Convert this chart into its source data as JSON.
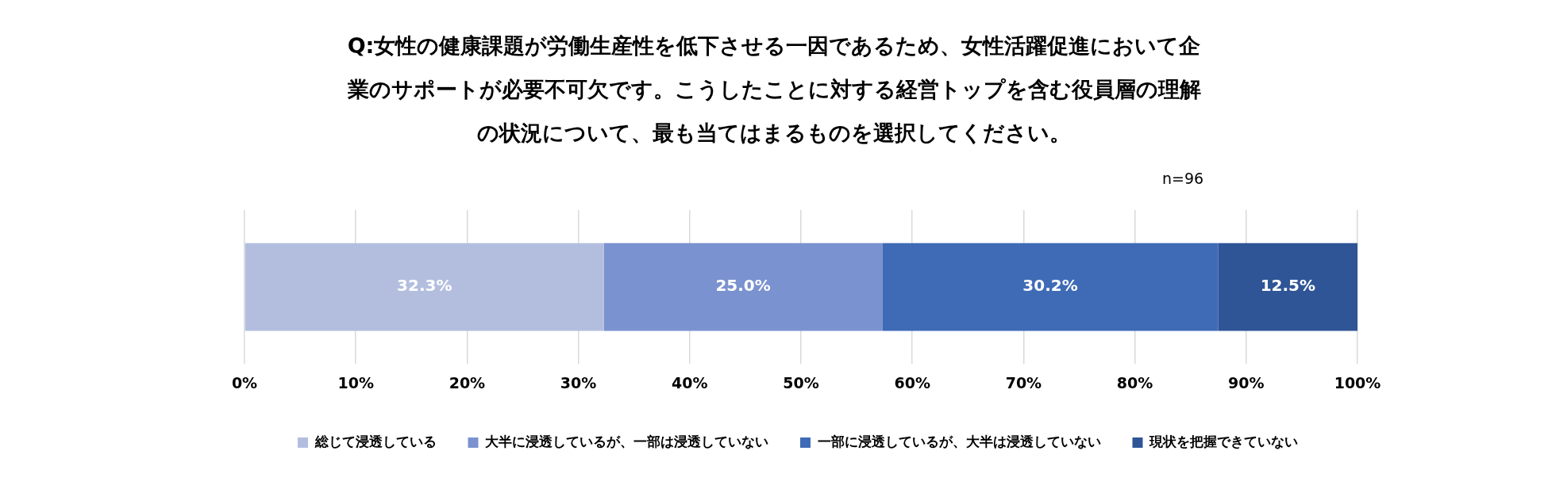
{
  "chart_data": {
    "type": "bar",
    "orientation": "horizontal",
    "stacked": true,
    "title": "Q:女性の健康課題が労働生産性を低下させる一因であるため、女性活躍促進において企業のサポートが必要不可欠です。こうしたことに対する経営トップを含む役員層の理解の状況について、最も当てはまるものを選択してください。",
    "annotations": [
      "n=96"
    ],
    "categories": [
      null
    ],
    "series": [
      {
        "name": "総じて浸透している",
        "color": "#b3bedf",
        "values": [
          32.3
        ],
        "value_labels": [
          "32.3%"
        ]
      },
      {
        "name": "大半に浸透しているが、一部は浸透していない",
        "color": "#7a92cf",
        "values": [
          25.0
        ],
        "value_labels": [
          "25.0%"
        ]
      },
      {
        "name": "一部に浸透しているが、大半は浸透していない",
        "color": "#3f6bb6",
        "values": [
          30.2
        ],
        "value_labels": [
          "30.2%"
        ]
      },
      {
        "name": "現状を把握できていない",
        "color": "#2f5597",
        "values": [
          12.5
        ],
        "value_labels": [
          "12.5%"
        ]
      }
    ],
    "xlim": [
      0,
      100
    ],
    "xticks": [
      {
        "value": 0,
        "label": "0%"
      },
      {
        "value": 10,
        "label": "10%"
      },
      {
        "value": 20,
        "label": "20%"
      },
      {
        "value": 30,
        "label": "30%"
      },
      {
        "value": 40,
        "label": "40%"
      },
      {
        "value": 50,
        "label": "50%"
      },
      {
        "value": 60,
        "label": "60%"
      },
      {
        "value": 70,
        "label": "70%"
      },
      {
        "value": 80,
        "label": "80%"
      },
      {
        "value": 90,
        "label": "90%"
      },
      {
        "value": 100,
        "label": "100%"
      }
    ],
    "grid": "x",
    "legend": "bottom",
    "tick_labels": "x"
  }
}
